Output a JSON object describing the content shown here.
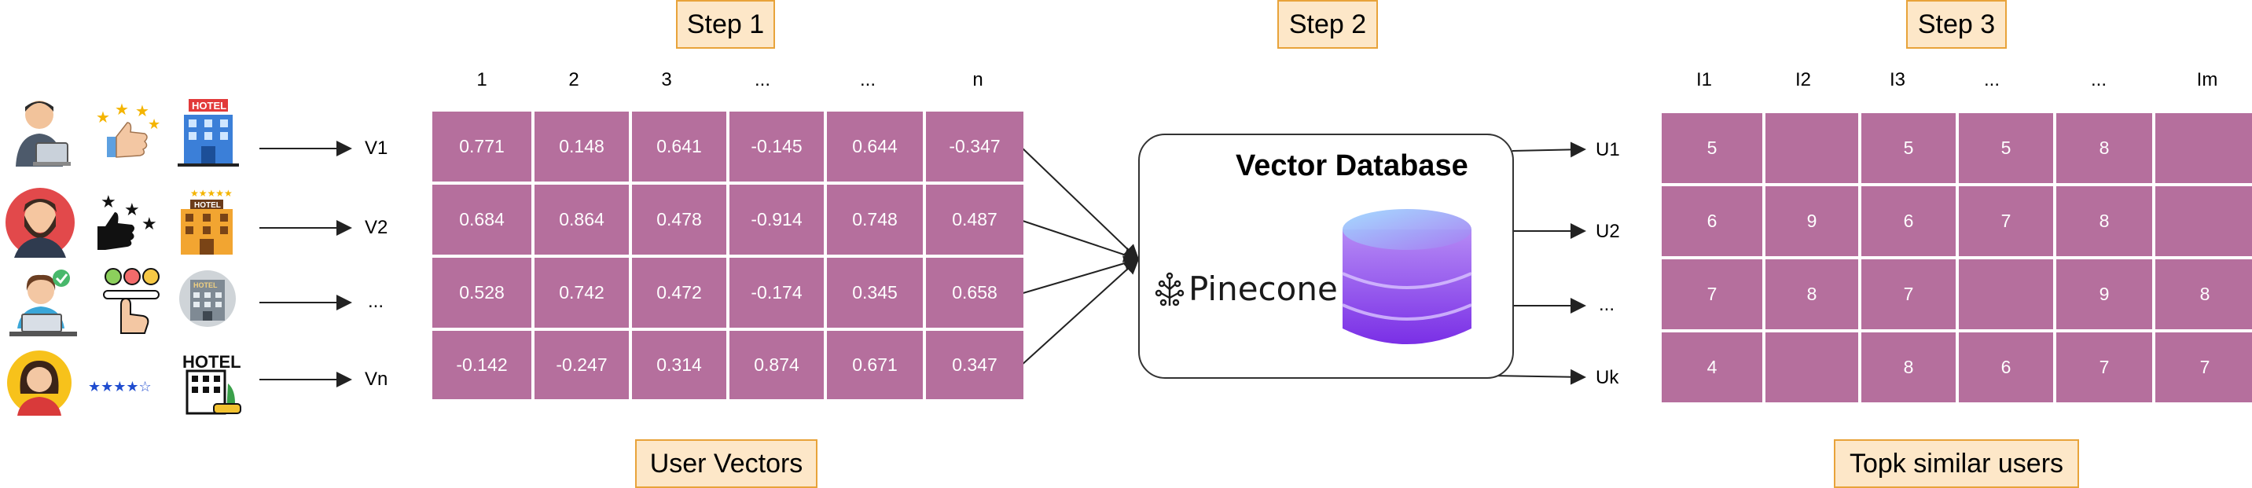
{
  "steps": {
    "step1": "Step 1",
    "step2": "Step 2",
    "step3": "Step 3"
  },
  "captions": {
    "user_vectors": "User Vectors",
    "topk": "Topk similar users"
  },
  "user_vectors": {
    "columns": [
      "1",
      "2",
      "3",
      "...",
      "...",
      "n"
    ],
    "row_labels": [
      "V1",
      "V2",
      "...",
      "Vn"
    ],
    "rows": [
      [
        "0.771",
        "0.148",
        "0.641",
        "-0.145",
        "0.644",
        "-0.347"
      ],
      [
        "0.684",
        "0.864",
        "0.478",
        "-0.914",
        "0.748",
        "0.487"
      ],
      [
        "0.528",
        "0.742",
        "0.472",
        "-0.174",
        "0.345",
        "0.658"
      ],
      [
        "-0.142",
        "-0.247",
        "0.314",
        "0.874",
        "0.671",
        "0.347"
      ]
    ]
  },
  "database": {
    "title": "Vector Database",
    "brand": "Pinecone"
  },
  "similar_users": {
    "row_labels": [
      "U1",
      "U2",
      "...",
      "Uk"
    ],
    "columns": [
      "I1",
      "I2",
      "I3",
      "...",
      "...",
      "Im"
    ],
    "rows": [
      [
        "5",
        "",
        "5",
        "5",
        "8",
        ""
      ],
      [
        "6",
        "9",
        "6",
        "7",
        "8",
        ""
      ],
      [
        "7",
        "8",
        "7",
        "",
        "9",
        "8"
      ],
      [
        "4",
        "",
        "8",
        "6",
        "7",
        "7"
      ]
    ]
  },
  "icons": {
    "users": [
      "man-with-laptop-icon",
      "bearded-man-icon",
      "woman-at-laptop-icon",
      "woman-avatar-icon"
    ],
    "ratings": [
      "thumbs-up-stars-icon",
      "thumbs-up-stars-icon",
      "emoji-rating-slider-icon",
      "five-star-rating-icon"
    ],
    "hotels": [
      "blue-hotel-icon",
      "orange-hotel-icon",
      "hotel-round-icon",
      "hotel-outline-icon"
    ]
  },
  "colors": {
    "cell": "#b56f9d",
    "step_fill": "#fde7c8",
    "step_border": "#e8a33a",
    "database_purple": "#8b3df0"
  }
}
